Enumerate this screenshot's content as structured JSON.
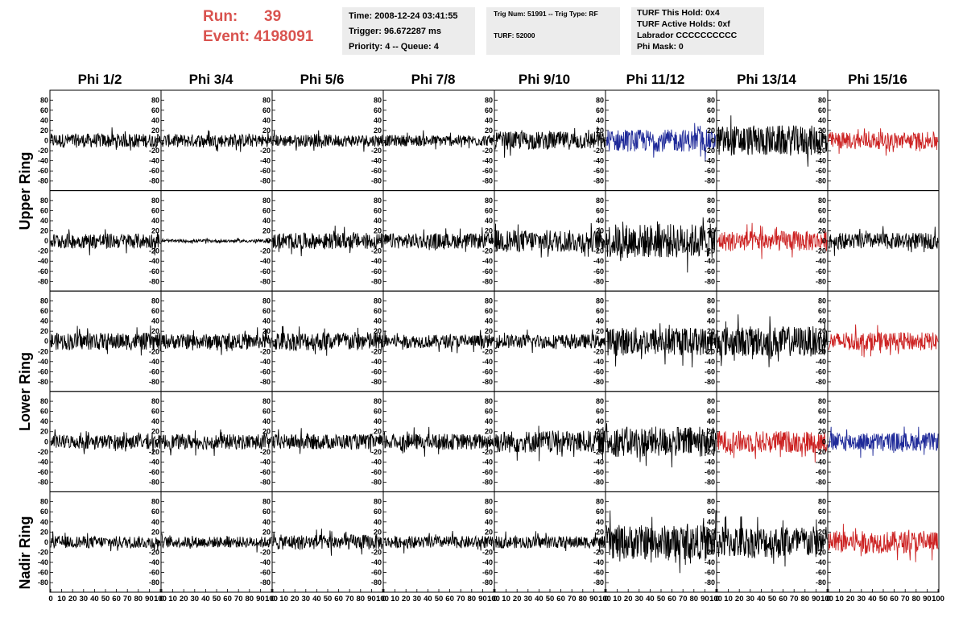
{
  "header": {
    "run_label": "Run:",
    "run_value": "39",
    "event_label": "Event:",
    "event_value": "4198091"
  },
  "info_time": {
    "time": "Time: 2008-12-24 03:41:55",
    "trigger": "Trigger: 96.672287 ms",
    "priority": "Priority: 4 -- Queue: 4"
  },
  "info_trig": {
    "trig": "Trig Num: 51991 -- Trig Type: RF",
    "turf": "TURF: 52000"
  },
  "info_turf": {
    "hold": "TURF This Hold: 0x4",
    "active": "TURF Active Holds: 0xf",
    "labrador": "Labrador CCCCCCCCCC",
    "phimask": "Phi Mask: 0"
  },
  "colors": {
    "normal": "#000000",
    "red": "#cc2222",
    "blue": "#1f2a99",
    "header_red": "#d9534f",
    "info_bg": "#ececec"
  },
  "chart_data": {
    "type": "line",
    "column_titles": [
      "Phi 1/2",
      "Phi 3/4",
      "Phi 5/6",
      "Phi 7/8",
      "Phi 9/10",
      "Phi 11/12",
      "Phi 13/14",
      "Phi 15/16"
    ],
    "ring_labels": [
      "Upper Ring",
      "Lower Ring",
      "Nadir Ring"
    ],
    "xlim": [
      0,
      100
    ],
    "ylim": [
      -90,
      90
    ],
    "x_tick_labels": [
      "0",
      "10",
      "20",
      "30",
      "40",
      "50",
      "60",
      "70",
      "80",
      "90",
      "100"
    ],
    "y_tick_labels": [
      "80",
      "60",
      "40",
      "20",
      "0",
      "-20",
      "-40",
      "-60",
      "-80"
    ],
    "panels": [
      {
        "row": 0,
        "col": 0,
        "color": "normal",
        "amp": 14
      },
      {
        "row": 0,
        "col": 1,
        "color": "normal",
        "amp": 13
      },
      {
        "row": 0,
        "col": 2,
        "color": "normal",
        "amp": 12
      },
      {
        "row": 0,
        "col": 3,
        "color": "normal",
        "amp": 11
      },
      {
        "row": 0,
        "col": 4,
        "color": "normal",
        "amp": 18
      },
      {
        "row": 0,
        "col": 5,
        "color": "blue",
        "amp": 22
      },
      {
        "row": 0,
        "col": 6,
        "color": "normal",
        "amp": 30
      },
      {
        "row": 0,
        "col": 7,
        "color": "red",
        "amp": 17
      },
      {
        "row": 1,
        "col": 0,
        "color": "normal",
        "amp": 15
      },
      {
        "row": 1,
        "col": 1,
        "color": "normal",
        "amp": 3
      },
      {
        "row": 1,
        "col": 2,
        "color": "normal",
        "amp": 16
      },
      {
        "row": 1,
        "col": 3,
        "color": "normal",
        "amp": 15
      },
      {
        "row": 1,
        "col": 4,
        "color": "normal",
        "amp": 22
      },
      {
        "row": 1,
        "col": 5,
        "color": "normal",
        "amp": 34
      },
      {
        "row": 1,
        "col": 6,
        "color": "red",
        "amp": 20
      },
      {
        "row": 1,
        "col": 7,
        "color": "normal",
        "amp": 16
      },
      {
        "row": 2,
        "col": 0,
        "color": "normal",
        "amp": 17
      },
      {
        "row": 2,
        "col": 1,
        "color": "normal",
        "amp": 15
      },
      {
        "row": 2,
        "col": 2,
        "color": "normal",
        "amp": 19
      },
      {
        "row": 2,
        "col": 3,
        "color": "normal",
        "amp": 13
      },
      {
        "row": 2,
        "col": 4,
        "color": "normal",
        "amp": 14
      },
      {
        "row": 2,
        "col": 5,
        "color": "normal",
        "amp": 28
      },
      {
        "row": 2,
        "col": 6,
        "color": "normal",
        "amp": 30
      },
      {
        "row": 2,
        "col": 7,
        "color": "red",
        "amp": 18
      },
      {
        "row": 3,
        "col": 0,
        "color": "normal",
        "amp": 14
      },
      {
        "row": 3,
        "col": 1,
        "color": "normal",
        "amp": 15
      },
      {
        "row": 3,
        "col": 2,
        "color": "normal",
        "amp": 15
      },
      {
        "row": 3,
        "col": 3,
        "color": "normal",
        "amp": 16
      },
      {
        "row": 3,
        "col": 4,
        "color": "normal",
        "amp": 22
      },
      {
        "row": 3,
        "col": 5,
        "color": "normal",
        "amp": 30
      },
      {
        "row": 3,
        "col": 6,
        "color": "red",
        "amp": 22
      },
      {
        "row": 3,
        "col": 7,
        "color": "blue",
        "amp": 18
      },
      {
        "row": 4,
        "col": 0,
        "color": "normal",
        "amp": 12
      },
      {
        "row": 4,
        "col": 1,
        "color": "normal",
        "amp": 11
      },
      {
        "row": 4,
        "col": 2,
        "color": "normal",
        "amp": 15
      },
      {
        "row": 4,
        "col": 3,
        "color": "normal",
        "amp": 12
      },
      {
        "row": 4,
        "col": 4,
        "color": "normal",
        "amp": 12
      },
      {
        "row": 4,
        "col": 5,
        "color": "normal",
        "amp": 34
      },
      {
        "row": 4,
        "col": 6,
        "color": "normal",
        "amp": 32
      },
      {
        "row": 4,
        "col": 7,
        "color": "red",
        "amp": 22
      }
    ]
  }
}
